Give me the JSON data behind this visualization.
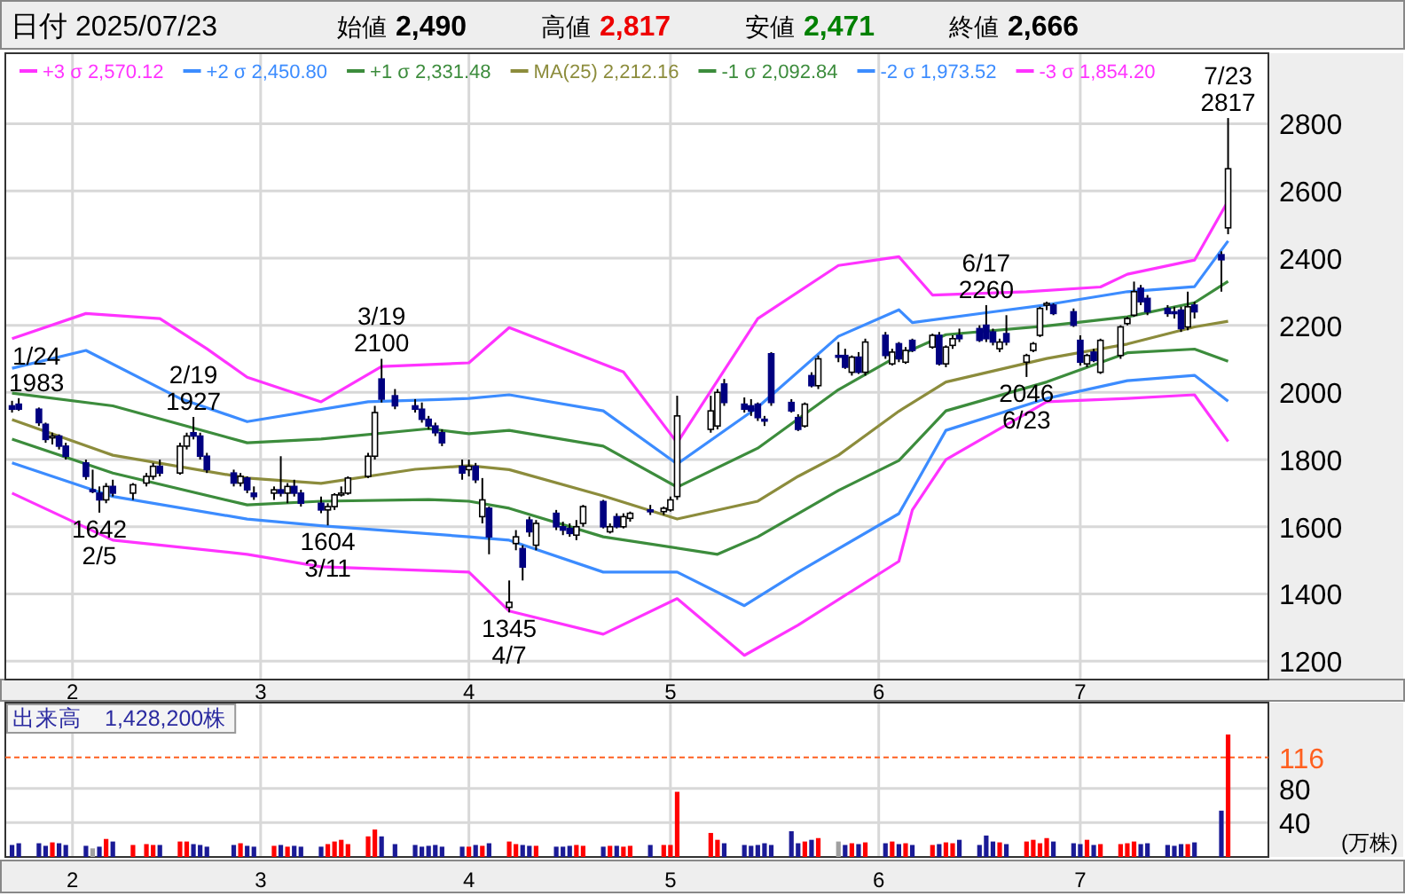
{
  "chart_data": [
    {
      "type": "candlestick",
      "title": "日付 2025/07/23",
      "color": "#000080",
      "legend": "top",
      "grid": true,
      "colors": [
        "#000080",
        "#000080",
        "#000080",
        "#000080",
        "#ffffff",
        "#000080",
        "#000080",
        "#000080",
        "#000080",
        "#000080",
        "#ffffff",
        "#000080",
        "#ffffff",
        "#ffffff",
        "#ffffff",
        "#000080",
        "#ffffff",
        "#ffffff",
        "#000080",
        "#000080",
        "#000080",
        "#000080",
        "#ffffff",
        "#000080",
        "#000080",
        "#ffffff",
        "#000080",
        "#ffffff",
        "#000080",
        "#000080",
        "#000080",
        "#ffffff",
        "#ffffff",
        "#ffffff",
        "#ffffff",
        "#ffffff",
        "#ffffff",
        "#000080",
        "#000080",
        "#000080",
        "#000080",
        "#000080",
        "#000080",
        "#000080",
        "#000080",
        "#ffffff",
        "#000080",
        "#ffffff",
        "#000080",
        "#ffffff",
        "#ffffff",
        "#000080",
        "#000080",
        "#ffffff",
        "#000080",
        "#000080",
        "#000080",
        "#ffffff",
        "#ffffff",
        "#000080",
        "#ffffff",
        "#000080",
        "#ffffff",
        "#ffffff",
        "#000080",
        "#ffffff",
        "#ffffff",
        "#ffffff",
        "#ffffff",
        "#ffffff",
        "#000080",
        "#000080",
        "#000080",
        "#000080",
        "#000080",
        "#000080",
        "#000080",
        "#000080",
        "#ffffff",
        "#000080",
        "#ffffff",
        "#000080",
        "#000080",
        "#ffffff",
        "#000080",
        "#ffffff",
        "#000080",
        "#ffffff",
        "#000080",
        "#ffffff",
        "#000080",
        "#ffffff",
        "#000080",
        "#ffffff",
        "#ffffff",
        "#000080",
        "#000080",
        "#000080",
        "#000080",
        "#ffffff",
        "#000080",
        "#ffffff",
        "#ffffff",
        "#ffffff",
        "#ffffff",
        "#000080",
        "#000080",
        "#000080",
        "#ffffff",
        "#000080",
        "#ffffff",
        "#ffffff",
        "#ffffff",
        "#ffffff",
        "#000080",
        "#000080",
        "#000080",
        "#000080",
        "#000080",
        "#ffffff",
        "#000080",
        "#000080",
        "#ffffff"
      ],
      "xlim": [
        "2025-01-22",
        "2025-07-29"
      ],
      "xticks": [
        {
          "value": "2025-02-01",
          "label": "2"
        },
        {
          "value": "2025-03-01",
          "label": "3"
        },
        {
          "value": "2025-04-01",
          "label": "4"
        },
        {
          "value": "2025-05-01",
          "label": "5"
        },
        {
          "value": "2025-06-01",
          "label": "6"
        },
        {
          "value": "2025-07-01",
          "label": "7"
        }
      ],
      "ylim": [
        1145,
        3010
      ],
      "yticks": [
        1200,
        1400,
        1600,
        1800,
        2000,
        2200,
        2400,
        2600,
        2800
      ],
      "x": [
        "2025-01-23",
        "2025-01-24",
        "2025-01-27",
        "2025-01-28",
        "2025-01-29",
        "2025-01-30",
        "2025-01-31",
        "2025-02-03",
        "2025-02-04",
        "2025-02-05",
        "2025-02-06",
        "2025-02-07",
        "2025-02-10",
        "2025-02-12",
        "2025-02-13",
        "2025-02-14",
        "2025-02-17",
        "2025-02-18",
        "2025-02-19",
        "2025-02-20",
        "2025-02-21",
        "2025-02-25",
        "2025-02-26",
        "2025-02-27",
        "2025-02-28",
        "2025-03-03",
        "2025-03-04",
        "2025-03-05",
        "2025-03-06",
        "2025-03-07",
        "2025-03-10",
        "2025-03-11",
        "2025-03-12",
        "2025-03-13",
        "2025-03-14",
        "2025-03-17",
        "2025-03-18",
        "2025-03-19",
        "2025-03-21",
        "2025-03-24",
        "2025-03-25",
        "2025-03-26",
        "2025-03-27",
        "2025-03-28",
        "2025-03-31",
        "2025-04-01",
        "2025-04-02",
        "2025-04-03",
        "2025-04-04",
        "2025-04-07",
        "2025-04-08",
        "2025-04-09",
        "2025-04-10",
        "2025-04-11",
        "2025-04-14",
        "2025-04-15",
        "2025-04-16",
        "2025-04-17",
        "2025-04-18",
        "2025-04-21",
        "2025-04-22",
        "2025-04-23",
        "2025-04-24",
        "2025-04-25",
        "2025-04-28",
        "2025-04-30",
        "2025-05-01",
        "2025-05-02",
        "2025-05-07",
        "2025-05-08",
        "2025-05-09",
        "2025-05-12",
        "2025-05-13",
        "2025-05-14",
        "2025-05-15",
        "2025-05-16",
        "2025-05-19",
        "2025-05-20",
        "2025-05-21",
        "2025-05-22",
        "2025-05-23",
        "2025-05-26",
        "2025-05-27",
        "2025-05-28",
        "2025-05-29",
        "2025-05-30",
        "2025-06-02",
        "2025-06-03",
        "2025-06-04",
        "2025-06-05",
        "2025-06-06",
        "2025-06-09",
        "2025-06-10",
        "2025-06-11",
        "2025-06-12",
        "2025-06-13",
        "2025-06-16",
        "2025-06-17",
        "2025-06-18",
        "2025-06-19",
        "2025-06-20",
        "2025-06-23",
        "2025-06-24",
        "2025-06-25",
        "2025-06-26",
        "2025-06-27",
        "2025-06-30",
        "2025-07-01",
        "2025-07-02",
        "2025-07-03",
        "2025-07-04",
        "2025-07-07",
        "2025-07-08",
        "2025-07-09",
        "2025-07-10",
        "2025-07-11",
        "2025-07-14",
        "2025-07-15",
        "2025-07-16",
        "2025-07-17",
        "2025-07-18",
        "2025-07-22",
        "2025-07-23"
      ],
      "ohlc": [
        [
          1960,
          1975,
          1940,
          1950
        ],
        [
          1965,
          1983,
          1945,
          1950
        ],
        [
          1950,
          1955,
          1900,
          1910
        ],
        [
          1905,
          1910,
          1850,
          1860
        ],
        [
          1865,
          1880,
          1845,
          1870
        ],
        [
          1870,
          1875,
          1830,
          1840
        ],
        [
          1840,
          1850,
          1800,
          1810
        ],
        [
          1790,
          1800,
          1740,
          1750
        ],
        [
          1710,
          1770,
          1700,
          1710
        ],
        [
          1700,
          1720,
          1642,
          1680
        ],
        [
          1680,
          1730,
          1670,
          1720
        ],
        [
          1720,
          1740,
          1690,
          1700
        ],
        [
          1700,
          1730,
          1680,
          1725
        ],
        [
          1730,
          1760,
          1720,
          1750
        ],
        [
          1750,
          1790,
          1740,
          1780
        ],
        [
          1780,
          1800,
          1750,
          1760
        ],
        [
          1760,
          1850,
          1755,
          1840
        ],
        [
          1840,
          1880,
          1830,
          1870
        ],
        [
          1880,
          1927,
          1860,
          1870
        ],
        [
          1870,
          1880,
          1800,
          1810
        ],
        [
          1810,
          1820,
          1760,
          1770
        ],
        [
          1760,
          1770,
          1720,
          1730
        ],
        [
          1730,
          1760,
          1720,
          1750
        ],
        [
          1745,
          1750,
          1700,
          1710
        ],
        [
          1700,
          1720,
          1680,
          1690
        ],
        [
          1700,
          1720,
          1680,
          1710
        ],
        [
          1710,
          1810,
          1690,
          1700
        ],
        [
          1700,
          1730,
          1670,
          1720
        ],
        [
          1720,
          1740,
          1690,
          1700
        ],
        [
          1700,
          1710,
          1660,
          1670
        ],
        [
          1670,
          1690,
          1640,
          1650
        ],
        [
          1650,
          1670,
          1604,
          1660
        ],
        [
          1660,
          1700,
          1650,
          1695
        ],
        [
          1695,
          1720,
          1690,
          1700
        ],
        [
          1700,
          1750,
          1695,
          1745
        ],
        [
          1750,
          1820,
          1745,
          1810
        ],
        [
          1810,
          1960,
          1800,
          1940
        ],
        [
          2040,
          2100,
          1970,
          1980
        ],
        [
          1990,
          2010,
          1950,
          1960
        ],
        [
          1960,
          1980,
          1940,
          1950
        ],
        [
          1950,
          1970,
          1910,
          1920
        ],
        [
          1920,
          1930,
          1890,
          1900
        ],
        [
          1900,
          1910,
          1870,
          1880
        ],
        [
          1880,
          1890,
          1840,
          1850
        ],
        [
          1780,
          1800,
          1740,
          1760
        ],
        [
          1770,
          1800,
          1750,
          1780
        ],
        [
          1780,
          1790,
          1730,
          1740
        ],
        [
          1630,
          1745,
          1610,
          1680
        ],
        [
          1655,
          1660,
          1518,
          1570
        ],
        [
          1360,
          1440,
          1345,
          1375
        ],
        [
          1550,
          1590,
          1530,
          1570
        ],
        [
          1535,
          1545,
          1440,
          1480
        ],
        [
          1620,
          1630,
          1570,
          1585
        ],
        [
          1545,
          1620,
          1530,
          1610
        ],
        [
          1640,
          1650,
          1590,
          1600
        ],
        [
          1600,
          1615,
          1575,
          1590
        ],
        [
          1595,
          1610,
          1570,
          1580
        ],
        [
          1575,
          1620,
          1560,
          1600
        ],
        [
          1610,
          1665,
          1600,
          1660
        ],
        [
          1675,
          1680,
          1595,
          1600
        ],
        [
          1585,
          1610,
          1580,
          1600
        ],
        [
          1630,
          1640,
          1595,
          1600
        ],
        [
          1600,
          1640,
          1595,
          1630
        ],
        [
          1625,
          1645,
          1615,
          1640
        ],
        [
          1650,
          1665,
          1635,
          1645
        ],
        [
          1645,
          1660,
          1635,
          1655
        ],
        [
          1650,
          1690,
          1645,
          1680
        ],
        [
          1690,
          1990,
          1680,
          1930
        ],
        [
          1890,
          1990,
          1880,
          1945
        ],
        [
          1900,
          2010,
          1890,
          2000
        ],
        [
          2025,
          2040,
          1960,
          1970
        ],
        [
          1965,
          1985,
          1940,
          1950
        ],
        [
          1960,
          1980,
          1930,
          1945
        ],
        [
          1965,
          1970,
          1915,
          1925
        ],
        [
          1920,
          1930,
          1900,
          1915
        ],
        [
          2115,
          2120,
          1960,
          1970
        ],
        [
          1970,
          1980,
          1940,
          1945
        ],
        [
          1925,
          1935,
          1885,
          1890
        ],
        [
          1900,
          1970,
          1895,
          1965
        ],
        [
          2050,
          2060,
          2015,
          2020
        ],
        [
          2020,
          2110,
          2010,
          2100
        ],
        [
          2110,
          2150,
          2090,
          2110
        ],
        [
          2110,
          2130,
          2070,
          2075
        ],
        [
          2060,
          2110,
          2050,
          2105
        ],
        [
          2105,
          2120,
          2055,
          2060
        ],
        [
          2060,
          2160,
          2050,
          2150
        ],
        [
          2170,
          2180,
          2100,
          2110
        ],
        [
          2085,
          2130,
          2080,
          2120
        ],
        [
          2145,
          2150,
          2090,
          2100
        ],
        [
          2090,
          2135,
          2085,
          2125
        ],
        [
          2155,
          2160,
          2120,
          2125
        ],
        [
          2135,
          2175,
          2130,
          2170
        ],
        [
          2170,
          2180,
          2080,
          2085
        ],
        [
          2085,
          2140,
          2075,
          2135
        ],
        [
          2140,
          2170,
          2130,
          2160
        ],
        [
          2170,
          2190,
          2150,
          2160
        ],
        [
          2190,
          2200,
          2150,
          2155
        ],
        [
          2200,
          2260,
          2150,
          2160
        ],
        [
          2180,
          2190,
          2140,
          2150
        ],
        [
          2130,
          2160,
          2120,
          2150
        ],
        [
          2175,
          2230,
          2140,
          2150
        ],
        [
          2090,
          2115,
          2046,
          2110
        ],
        [
          2125,
          2150,
          2120,
          2145
        ],
        [
          2170,
          2255,
          2165,
          2250
        ],
        [
          2260,
          2270,
          2245,
          2265
        ],
        [
          2260,
          2265,
          2230,
          2235
        ],
        [
          2240,
          2250,
          2195,
          2200
        ],
        [
          2155,
          2170,
          2080,
          2090
        ],
        [
          2085,
          2115,
          2075,
          2110
        ],
        [
          2120,
          2130,
          2090,
          2095
        ],
        [
          2060,
          2160,
          2055,
          2155
        ],
        [
          2110,
          2200,
          2100,
          2195
        ],
        [
          2205,
          2225,
          2200,
          2220
        ],
        [
          2230,
          2330,
          2225,
          2300
        ],
        [
          2310,
          2320,
          2260,
          2270
        ],
        [
          2280,
          2290,
          2230,
          2240
        ],
        [
          2250,
          2260,
          2225,
          2235
        ],
        [
          2240,
          2255,
          2220,
          2235
        ],
        [
          2245,
          2255,
          2180,
          2190
        ],
        [
          2195,
          2300,
          2185,
          2255
        ],
        [
          2260,
          2270,
          2220,
          2240
        ],
        [
          2410,
          2420,
          2300,
          2395
        ],
        [
          2490,
          2817,
          2471,
          2666
        ]
      ],
      "series": [
        {
          "type": "line",
          "name": "+3 σ 2,570.12",
          "color": "#ff33ff",
          "x": [
            "2025-01-23",
            "2025-02-03",
            "2025-02-14",
            "2025-02-21",
            "2025-02-27",
            "2025-03-10",
            "2025-03-19",
            "2025-04-01",
            "2025-04-07",
            "2025-04-24",
            "2025-05-02",
            "2025-05-14",
            "2025-05-26",
            "2025-06-04",
            "2025-06-09",
            "2025-06-23",
            "2025-07-04",
            "2025-07-08",
            "2025-07-18",
            "2025-07-23"
          ],
          "values": [
            2160,
            2235,
            2220,
            2130,
            2045,
            1972,
            2077,
            2088,
            2193,
            2061,
            1850,
            2220,
            2378,
            2404,
            2290,
            2300,
            2314,
            2352,
            2394,
            2570
          ]
        },
        {
          "type": "line",
          "name": "+2 σ 2,450.80",
          "color": "#3c8cff",
          "x": [
            "2025-01-23",
            "2025-02-03",
            "2025-02-17",
            "2025-02-27",
            "2025-03-17",
            "2025-04-01",
            "2025-04-07",
            "2025-04-21",
            "2025-05-02",
            "2025-05-14",
            "2025-05-26",
            "2025-06-04",
            "2025-06-06",
            "2025-06-18",
            "2025-06-26",
            "2025-07-08",
            "2025-07-18",
            "2025-07-23"
          ],
          "values": [
            2072,
            2125,
            1982,
            1913,
            1972,
            1982,
            1993,
            1945,
            1787,
            1956,
            2167,
            2246,
            2208,
            2240,
            2261,
            2300,
            2315,
            2451
          ]
        },
        {
          "type": "line",
          "name": "+1 σ 2,331.48",
          "color": "#3c8c3c",
          "x": [
            "2025-01-23",
            "2025-02-07",
            "2025-02-27",
            "2025-03-10",
            "2025-03-26",
            "2025-04-01",
            "2025-04-07",
            "2025-04-21",
            "2025-05-02",
            "2025-05-14",
            "2025-05-26",
            "2025-06-04",
            "2025-06-11",
            "2025-06-26",
            "2025-07-08",
            "2025-07-18",
            "2025-07-23"
          ],
          "values": [
            1998,
            1960,
            1850,
            1861,
            1892,
            1877,
            1887,
            1840,
            1718,
            1834,
            2008,
            2110,
            2172,
            2198,
            2225,
            2267,
            2331
          ]
        },
        {
          "type": "line",
          "name": "MA(25) 2,212.16",
          "color": "#8c8c3c",
          "x": [
            "2025-01-23",
            "2025-02-07",
            "2025-02-27",
            "2025-03-10",
            "2025-03-24",
            "2025-04-01",
            "2025-04-07",
            "2025-04-21",
            "2025-05-02",
            "2025-05-14",
            "2025-05-20",
            "2025-05-26",
            "2025-06-04",
            "2025-06-11",
            "2025-06-26",
            "2025-07-08",
            "2025-07-18",
            "2025-07-23"
          ],
          "values": [
            1919,
            1813,
            1745,
            1729,
            1771,
            1782,
            1770,
            1692,
            1623,
            1676,
            1750,
            1813,
            1944,
            2031,
            2101,
            2144,
            2195,
            2212
          ]
        },
        {
          "type": "line",
          "name": "-1 σ 2,092.84",
          "color": "#3c8c3c",
          "x": [
            "2025-01-23",
            "2025-02-07",
            "2025-02-27",
            "2025-03-10",
            "2025-03-26",
            "2025-04-01",
            "2025-04-07",
            "2025-04-21",
            "2025-05-08",
            "2025-05-14",
            "2025-05-26",
            "2025-06-04",
            "2025-06-11",
            "2025-06-26",
            "2025-07-08",
            "2025-07-18",
            "2025-07-23"
          ],
          "values": [
            1861,
            1760,
            1665,
            1676,
            1681,
            1676,
            1655,
            1570,
            1518,
            1570,
            1708,
            1797,
            1945,
            2031,
            2118,
            2129,
            2093
          ]
        },
        {
          "type": "line",
          "name": "-2 σ 1,973.52",
          "color": "#3c8cff",
          "x": [
            "2025-01-23",
            "2025-02-07",
            "2025-02-27",
            "2025-03-10",
            "2025-04-01",
            "2025-04-07",
            "2025-04-21",
            "2025-05-02",
            "2025-05-12",
            "2025-05-20",
            "2025-06-04",
            "2025-06-11",
            "2025-06-26",
            "2025-07-08",
            "2025-07-18",
            "2025-07-23"
          ],
          "values": [
            1790,
            1690,
            1623,
            1603,
            1570,
            1560,
            1465,
            1465,
            1365,
            1465,
            1639,
            1887,
            1982,
            2035,
            2051,
            1974
          ]
        },
        {
          "type": "line",
          "name": "-3 σ 1,854.20",
          "color": "#ff33ff",
          "x": [
            "2025-01-23",
            "2025-02-07",
            "2025-02-27",
            "2025-03-10",
            "2025-04-01",
            "2025-04-07",
            "2025-04-21",
            "2025-05-02",
            "2025-05-12",
            "2025-05-20",
            "2025-06-04",
            "2025-06-06",
            "2025-06-11",
            "2025-06-26",
            "2025-07-08",
            "2025-07-18",
            "2025-07-23"
          ],
          "values": [
            1700,
            1560,
            1518,
            1481,
            1465,
            1349,
            1280,
            1386,
            1217,
            1307,
            1497,
            1650,
            1800,
            1972,
            1982,
            1993,
            1854
          ]
        }
      ],
      "annotations": [
        "始値 2,490",
        "高値 2,817",
        "安値 2,471",
        "終値 2,666",
        {
          "text": "1/24\n1983",
          "x": "2025-01-24",
          "y": 1983
        },
        {
          "text": "1642\n2/5",
          "x": "2025-02-05",
          "y": 1642
        },
        {
          "text": "2/19\n1927",
          "x": "2025-02-19",
          "y": 1927
        },
        {
          "text": "1604\n3/11",
          "x": "2025-03-11",
          "y": 1604
        },
        {
          "text": "3/19\n2100",
          "x": "2025-03-19",
          "y": 2100
        },
        {
          "text": "1345\n4/7",
          "x": "2025-04-07",
          "y": 1345
        },
        {
          "text": "6/17\n2260",
          "x": "2025-06-17",
          "y": 2260
        },
        {
          "text": "2046\n6/23",
          "x": "2025-06-23",
          "y": 2046
        },
        {
          "text": "7/23\n2817",
          "x": "2025-07-23",
          "y": 2817
        }
      ]
    },
    {
      "type": "bar",
      "title": "出来高　1,428,200株",
      "ylabel": "(万株)",
      "grid": true,
      "xlim": [
        "2025-01-22",
        "2025-07-29"
      ],
      "xticks": [
        {
          "value": "2025-02-01",
          "label": "2"
        },
        {
          "value": "2025-03-01",
          "label": "3"
        },
        {
          "value": "2025-04-01",
          "label": "4"
        },
        {
          "value": "2025-05-01",
          "label": "5"
        },
        {
          "value": "2025-06-01",
          "label": "6"
        },
        {
          "value": "2025-07-01",
          "label": "7"
        }
      ],
      "ylim": [
        0,
        180
      ],
      "yticks": [
        40,
        80
      ],
      "ref_lines": [
        {
          "axis": "y",
          "value": 116,
          "label": "116",
          "color": "#ff6020",
          "line_style": "dashed"
        }
      ],
      "x": [
        "2025-01-23",
        "2025-01-24",
        "2025-01-27",
        "2025-01-28",
        "2025-01-29",
        "2025-01-30",
        "2025-01-31",
        "2025-02-03",
        "2025-02-04",
        "2025-02-05",
        "2025-02-06",
        "2025-02-07",
        "2025-02-10",
        "2025-02-12",
        "2025-02-13",
        "2025-02-14",
        "2025-02-17",
        "2025-02-18",
        "2025-02-19",
        "2025-02-20",
        "2025-02-21",
        "2025-02-25",
        "2025-02-26",
        "2025-02-27",
        "2025-02-28",
        "2025-03-03",
        "2025-03-04",
        "2025-03-05",
        "2025-03-06",
        "2025-03-07",
        "2025-03-10",
        "2025-03-11",
        "2025-03-12",
        "2025-03-13",
        "2025-03-14",
        "2025-03-17",
        "2025-03-18",
        "2025-03-19",
        "2025-03-21",
        "2025-03-24",
        "2025-03-25",
        "2025-03-26",
        "2025-03-27",
        "2025-03-28",
        "2025-03-31",
        "2025-04-01",
        "2025-04-02",
        "2025-04-03",
        "2025-04-04",
        "2025-04-07",
        "2025-04-08",
        "2025-04-09",
        "2025-04-10",
        "2025-04-11",
        "2025-04-14",
        "2025-04-15",
        "2025-04-16",
        "2025-04-17",
        "2025-04-18",
        "2025-04-21",
        "2025-04-22",
        "2025-04-23",
        "2025-04-24",
        "2025-04-25",
        "2025-04-28",
        "2025-04-30",
        "2025-05-01",
        "2025-05-02",
        "2025-05-07",
        "2025-05-08",
        "2025-05-09",
        "2025-05-12",
        "2025-05-13",
        "2025-05-14",
        "2025-05-15",
        "2025-05-16",
        "2025-05-19",
        "2025-05-20",
        "2025-05-21",
        "2025-05-22",
        "2025-05-23",
        "2025-05-26",
        "2025-05-27",
        "2025-05-28",
        "2025-05-29",
        "2025-05-30",
        "2025-06-02",
        "2025-06-03",
        "2025-06-04",
        "2025-06-05",
        "2025-06-06",
        "2025-06-09",
        "2025-06-10",
        "2025-06-11",
        "2025-06-12",
        "2025-06-13",
        "2025-06-16",
        "2025-06-17",
        "2025-06-18",
        "2025-06-19",
        "2025-06-20",
        "2025-06-23",
        "2025-06-24",
        "2025-06-25",
        "2025-06-26",
        "2025-06-27",
        "2025-06-30",
        "2025-07-01",
        "2025-07-02",
        "2025-07-03",
        "2025-07-04",
        "2025-07-07",
        "2025-07-08",
        "2025-07-09",
        "2025-07-10",
        "2025-07-11",
        "2025-07-14",
        "2025-07-15",
        "2025-07-16",
        "2025-07-17",
        "2025-07-18",
        "2025-07-22",
        "2025-07-23"
      ],
      "values": [
        14,
        16,
        16,
        13,
        17,
        16,
        14,
        13,
        10,
        12,
        21,
        18,
        14,
        15,
        14,
        14,
        18,
        18,
        15,
        14,
        12,
        14,
        16,
        13,
        12,
        13,
        14,
        12,
        13,
        12,
        12,
        15,
        18,
        20,
        15,
        24,
        32,
        24,
        15,
        14,
        12,
        13,
        14,
        12,
        12,
        12,
        14,
        13,
        16,
        18,
        15,
        14,
        13,
        13,
        12,
        12,
        13,
        14,
        13,
        12,
        13,
        13,
        12,
        13,
        14,
        14,
        14,
        76,
        28,
        20,
        16,
        14,
        13,
        14,
        16,
        14,
        30,
        16,
        18,
        20,
        22,
        18,
        14,
        16,
        15,
        17,
        16,
        18,
        15,
        16,
        14,
        14,
        15,
        17,
        16,
        20,
        14,
        25,
        18,
        17,
        15,
        18,
        20,
        16,
        22,
        18,
        16,
        15,
        20,
        14,
        15,
        15,
        16,
        18,
        15,
        16,
        14,
        13,
        15,
        15,
        17,
        54,
        142.82
      ],
      "colors": [
        "#1a1a96",
        "#1a1a96",
        "#1a1a96",
        "#1a1a96",
        "#ff0000",
        "#1a1a96",
        "#1a1a96",
        "#1a1a96",
        "#a0a0a0",
        "#1a1a96",
        "#ff0000",
        "#1a1a96",
        "#ff0000",
        "#ff0000",
        "#ff0000",
        "#1a1a96",
        "#ff0000",
        "#ff0000",
        "#1a1a96",
        "#1a1a96",
        "#1a1a96",
        "#1a1a96",
        "#ff0000",
        "#1a1a96",
        "#1a1a96",
        "#ff0000",
        "#1a1a96",
        "#ff0000",
        "#1a1a96",
        "#1a1a96",
        "#1a1a96",
        "#ff0000",
        "#ff0000",
        "#ff0000",
        "#ff0000",
        "#ff0000",
        "#ff0000",
        "#1a1a96",
        "#1a1a96",
        "#1a1a96",
        "#1a1a96",
        "#1a1a96",
        "#1a1a96",
        "#1a1a96",
        "#1a1a96",
        "#ff0000",
        "#1a1a96",
        "#ff0000",
        "#1a1a96",
        "#ff0000",
        "#ff0000",
        "#1a1a96",
        "#1a1a96",
        "#ff0000",
        "#1a1a96",
        "#1a1a96",
        "#1a1a96",
        "#ff0000",
        "#ff0000",
        "#1a1a96",
        "#ff0000",
        "#1a1a96",
        "#ff0000",
        "#ff0000",
        "#1a1a96",
        "#ff0000",
        "#ff0000",
        "#ff0000",
        "#ff0000",
        "#ff0000",
        "#1a1a96",
        "#1a1a96",
        "#1a1a96",
        "#1a1a96",
        "#1a1a96",
        "#1a1a96",
        "#1a1a96",
        "#1a1a96",
        "#ff0000",
        "#1a1a96",
        "#ff0000",
        "#a0a0a0",
        "#1a1a96",
        "#ff0000",
        "#1a1a96",
        "#ff0000",
        "#1a1a96",
        "#ff0000",
        "#1a1a96",
        "#ff0000",
        "#1a1a96",
        "#ff0000",
        "#1a1a96",
        "#ff0000",
        "#ff0000",
        "#1a1a96",
        "#1a1a96",
        "#1a1a96",
        "#1a1a96",
        "#ff0000",
        "#1a1a96",
        "#ff0000",
        "#ff0000",
        "#ff0000",
        "#ff0000",
        "#1a1a96",
        "#1a1a96",
        "#1a1a96",
        "#ff0000",
        "#1a1a96",
        "#ff0000",
        "#ff0000",
        "#ff0000",
        "#ff0000",
        "#1a1a96",
        "#1a1a96",
        "#1a1a96",
        "#1a1a96",
        "#1a1a96",
        "#ff0000",
        "#1a1a96",
        "#1a1a96",
        "#ff0000"
      ]
    }
  ]
}
